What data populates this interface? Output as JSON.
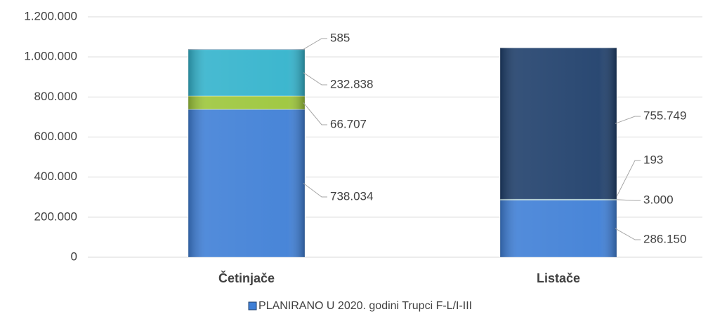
{
  "chart_data": {
    "type": "bar",
    "stacked": true,
    "categories": [
      "Četinjače",
      "Listače"
    ],
    "series": [
      {
        "name": "PLANIRANO U 2020. godini Trupci F-L/I-III",
        "color": "#3f7fd6",
        "values": [
          738034,
          286150
        ],
        "value_labels": [
          "738.034",
          "286.150"
        ]
      },
      {
        "color": "#9cc63a",
        "values": [
          66707,
          3000
        ],
        "value_labels": [
          "66.707",
          "3.000"
        ]
      },
      {
        "color": "#33b3cc",
        "values": [
          232838,
          193
        ],
        "value_labels": [
          "232.838",
          "193"
        ]
      },
      {
        "color": "#1f3f6b",
        "values": [
          585,
          755749
        ],
        "value_labels": [
          "585",
          "755.749"
        ]
      }
    ],
    "ylim": [
      0,
      1200000
    ],
    "yticks": [
      0,
      {
        "value": 200000,
        "label": "200.000"
      },
      {
        "value": 400000,
        "label": "400.000"
      },
      {
        "value": 600000,
        "label": "600.000"
      },
      {
        "value": 800000,
        "label": "800.000"
      },
      {
        "value": 1000000,
        "label": "1.000.000"
      },
      {
        "value": 1200000,
        "label": "1.200.000"
      }
    ],
    "grid": true
  }
}
